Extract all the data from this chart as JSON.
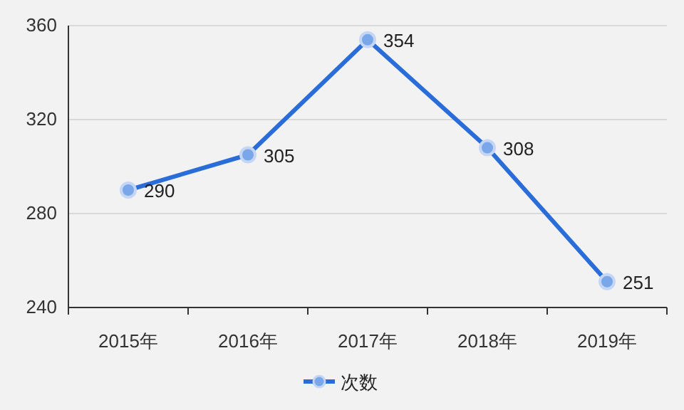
{
  "chart_data": {
    "type": "line",
    "categories": [
      "2015年",
      "2016年",
      "2017年",
      "2018年",
      "2019年"
    ],
    "series": [
      {
        "name": "次数",
        "color": "#2a6dd9",
        "values": [
          290,
          305,
          354,
          308,
          251
        ]
      }
    ],
    "ylim": [
      240,
      360
    ],
    "yticks": [
      240,
      280,
      320,
      360
    ],
    "grid": "y",
    "legend": "bottom",
    "marker": "circle",
    "line_style": "solid",
    "data_labels": true
  }
}
